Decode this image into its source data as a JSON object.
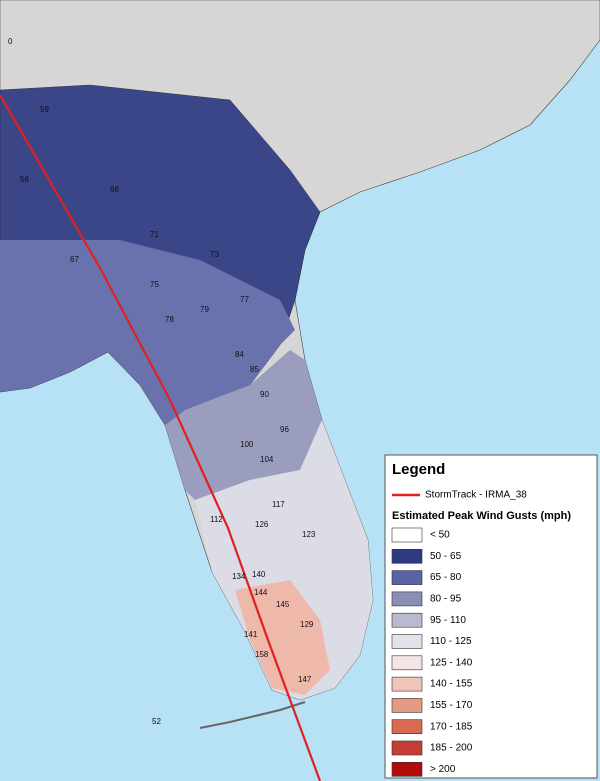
{
  "map_labels": [
    "59",
    "56",
    "68",
    "71",
    "67",
    "73",
    "75",
    "77",
    "78",
    "79",
    "84",
    "85",
    "90",
    "96",
    "100",
    "104",
    "117",
    "112",
    "123",
    "126",
    "134",
    "140",
    "145",
    "144",
    "129",
    "158",
    "147",
    "141",
    "52",
    "0"
  ],
  "legend": {
    "title": "Legend",
    "track": {
      "label": "StormTrack - IRMA_38",
      "color": "#e02020"
    },
    "scale_title": "Estimated Peak Wind Gusts (mph)",
    "classes": [
      {
        "label": "< 50",
        "color": "#ffffff"
      },
      {
        "label": "50 - 65",
        "color": "#2e3a80"
      },
      {
        "label": "65 - 80",
        "color": "#5a63a6"
      },
      {
        "label": "80 - 95",
        "color": "#8b8fb4"
      },
      {
        "label": "95 - 110",
        "color": "#b9bacd"
      },
      {
        "label": "110 - 125",
        "color": "#e2e2ea"
      },
      {
        "label": "125 - 140",
        "color": "#f4e6e6"
      },
      {
        "label": "140 - 155",
        "color": "#f0c4b6"
      },
      {
        "label": "155 - 170",
        "color": "#e59a86"
      },
      {
        "label": "170 - 185",
        "color": "#d86a52"
      },
      {
        "label": "185 - 200",
        "color": "#c63c36"
      },
      {
        "label": "> 200",
        "color": "#b00a0a"
      }
    ]
  }
}
